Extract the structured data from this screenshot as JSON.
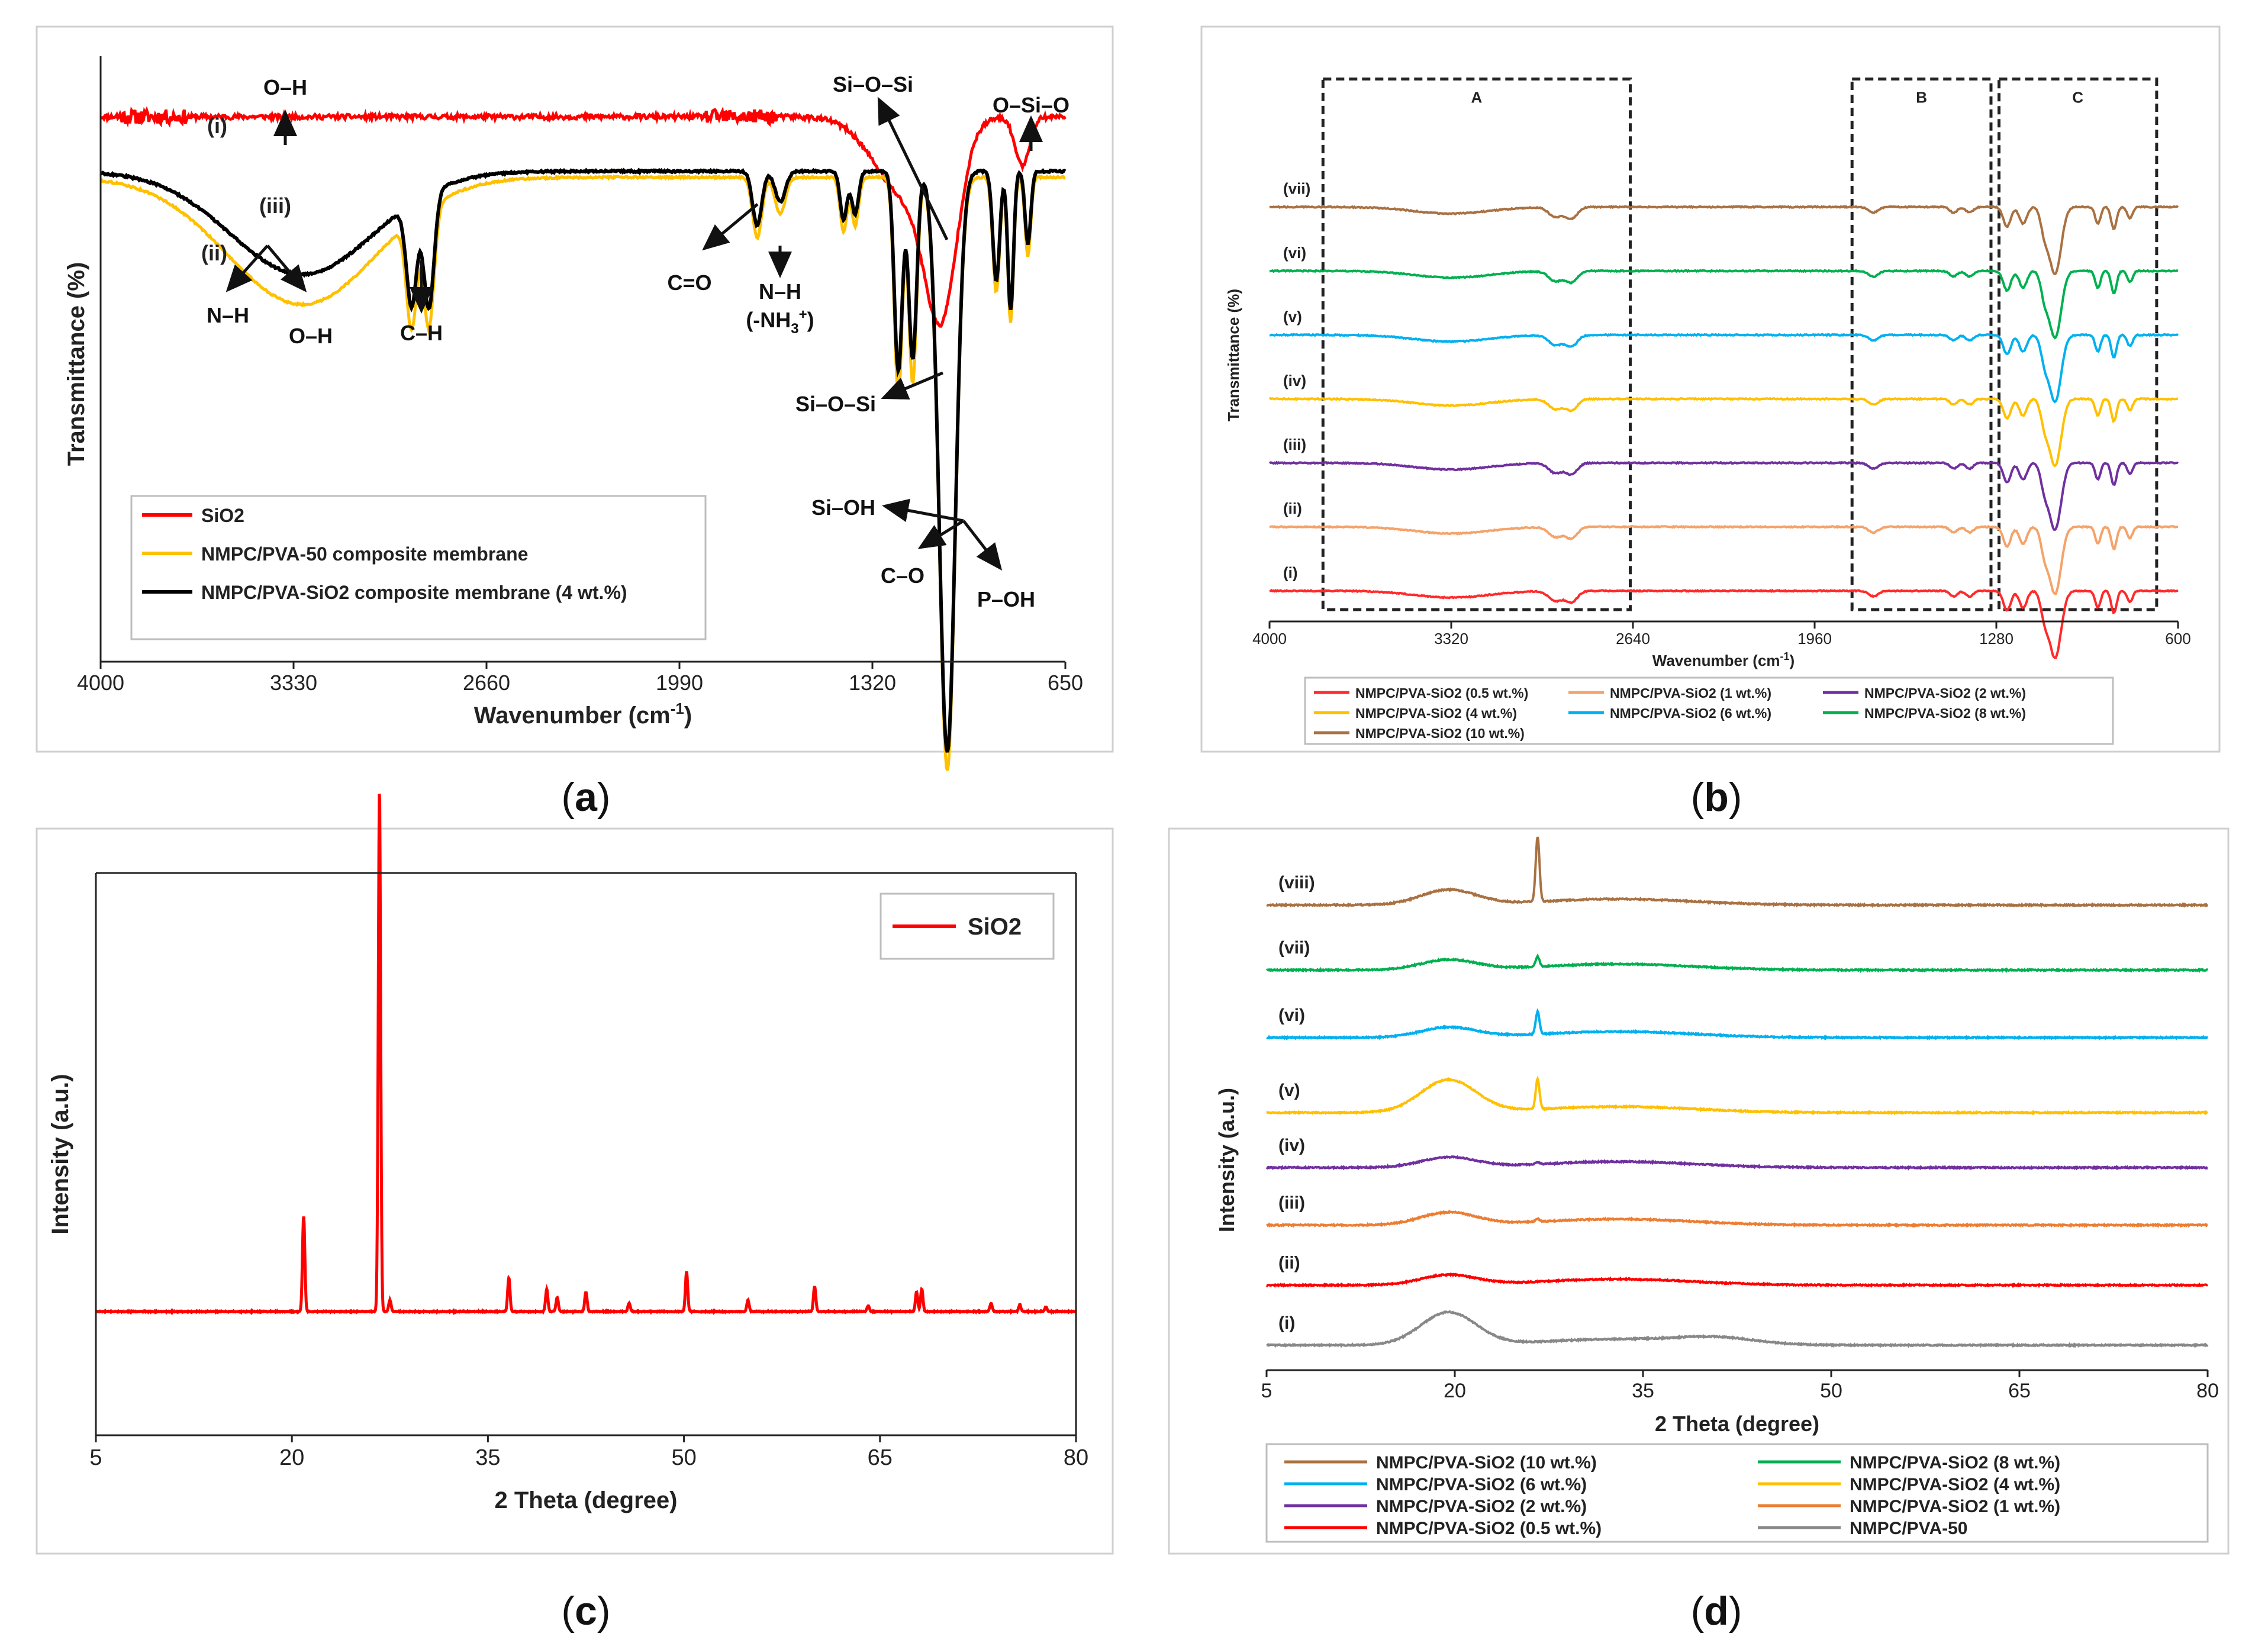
{
  "panels": {
    "a": {
      "caption": "a",
      "chart_data": {
        "type": "line",
        "xlabel": "Wavenumber (cm",
        "xlabel_sup": "-1",
        "xlabel_end": ")",
        "ylabel": "Transmittance (%)",
        "xlim": [
          4000,
          650
        ],
        "x_reversed": true,
        "xticks": [
          4000,
          3330,
          2660,
          1990,
          1320,
          650
        ],
        "series": [
          {
            "name": "SiO2",
            "label": "(i)",
            "color": "#ff0000",
            "offset": 0.9,
            "peaks": [
              [
                1200,
                0.13,
                110
              ],
              [
                1080,
                0.27,
                55
              ],
              [
                800,
                0.08,
                25
              ]
            ],
            "noise": 0.008
          },
          {
            "name": "NMPC/PVA-50 composite membrane",
            "label": "(ii)",
            "color": "#ffc000",
            "offset": 0.8,
            "peaks": [
              [
                3300,
                0.21,
                260
              ],
              [
                2920,
                0.18,
                18
              ],
              [
                2860,
                0.2,
                18
              ],
              [
                1720,
                0.1,
                16
              ],
              [
                1640,
                0.06,
                18
              ],
              [
                1420,
                0.09,
                12
              ],
              [
                1380,
                0.08,
                12
              ],
              [
                1230,
                0.36,
                14
              ],
              [
                1180,
                0.34,
                14
              ],
              [
                1060,
                0.98,
                28
              ],
              [
                890,
                0.19,
                12
              ],
              [
                840,
                0.24,
                10
              ],
              [
                780,
                0.13,
                10
              ]
            ],
            "noise": 0.003
          },
          {
            "name": "NMPC/PVA-SiO2 composite membrane (4 wt.%)",
            "label": "(iii)",
            "color": "#000000",
            "offset": 0.81,
            "peaks": [
              [
                3300,
                0.17,
                250
              ],
              [
                2920,
                0.17,
                18
              ],
              [
                2860,
                0.19,
                18
              ],
              [
                1720,
                0.09,
                16
              ],
              [
                1640,
                0.05,
                18
              ],
              [
                1420,
                0.08,
                12
              ],
              [
                1380,
                0.07,
                12
              ],
              [
                1230,
                0.33,
                14
              ],
              [
                1180,
                0.31,
                14
              ],
              [
                1060,
                0.96,
                28
              ],
              [
                890,
                0.18,
                12
              ],
              [
                840,
                0.23,
                10
              ],
              [
                780,
                0.12,
                10
              ]
            ],
            "noise": 0.003
          }
        ],
        "series_labels": [
          "(i)",
          "(ii)",
          "(iii)"
        ],
        "annotations": [
          "O–H",
          "N–H",
          "O–H",
          "C–H",
          "C=O",
          "N–H",
          "(-NH",
          "3",
          "+",
          ")",
          "Si–O–Si",
          "Si–O–Si",
          "O–Si–O",
          "Si–OH",
          "C–O",
          "P–OH"
        ],
        "legend": [
          "SiO2",
          "NMPC/PVA-50 composite membrane",
          "NMPC/PVA-SiO2 composite membrane (4 wt.%)"
        ],
        "legend_position": "bottom-left",
        "grid": false
      }
    },
    "b": {
      "caption": "b",
      "chart_data": {
        "type": "line",
        "xlabel": "Wavenumber (cm",
        "xlabel_sup": "-1",
        "xlabel_end": ")",
        "ylabel": "Transmittance (%)",
        "xlim": [
          4000,
          600
        ],
        "x_reversed": true,
        "xticks": [
          4000,
          3320,
          2640,
          1960,
          1280,
          600
        ],
        "series": [
          {
            "name": "NMPC/PVA-SiO2 (0.5 wt.%)",
            "label": "(i)",
            "color": "#ff2a2a",
            "offset": 0.055
          },
          {
            "name": "NMPC/PVA-SiO2 (1 wt.%)",
            "label": "(ii)",
            "color": "#f4a36b",
            "offset": 0.17
          },
          {
            "name": "NMPC/PVA-SiO2 (2 wt.%)",
            "label": "(iii)",
            "color": "#7030a0",
            "offset": 0.285
          },
          {
            "name": "NMPC/PVA-SiO2 (4 wt.%)",
            "label": "(iv)",
            "color": "#ffc000",
            "offset": 0.4
          },
          {
            "name": "NMPC/PVA-SiO2 (6 wt.%)",
            "label": "(v)",
            "color": "#00b0f0",
            "offset": 0.515
          },
          {
            "name": "NMPC/PVA-SiO2 (8 wt.%)",
            "label": "(vi)",
            "color": "#00b050",
            "offset": 0.63
          },
          {
            "name": "NMPC/PVA-SiO2 (10 wt.%)",
            "label": "(vii)",
            "color": "#a97142",
            "offset": 0.745
          }
        ],
        "peaks": [
          [
            3320,
            0.012,
            140
          ],
          [
            2930,
            0.018,
            25
          ],
          [
            2870,
            0.02,
            22
          ],
          [
            1740,
            0.01,
            18
          ],
          [
            1440,
            0.01,
            14
          ],
          [
            1380,
            0.01,
            14
          ],
          [
            1240,
            0.035,
            14
          ],
          [
            1180,
            0.03,
            14
          ],
          [
            1100,
            0.04,
            14
          ],
          [
            1060,
            0.12,
            22
          ],
          [
            900,
            0.03,
            10
          ],
          [
            840,
            0.04,
            10
          ],
          [
            780,
            0.02,
            10
          ]
        ],
        "regions": [
          {
            "label": "A",
            "x": [
              3800,
              2650
            ]
          },
          {
            "label": "B",
            "x": [
              1820,
              1300
            ]
          },
          {
            "label": "C",
            "x": [
              1270,
              680
            ]
          }
        ],
        "legend_position": "bottom",
        "grid": false
      }
    },
    "c": {
      "caption": "c",
      "chart_data": {
        "type": "line",
        "xlabel": "2 Theta (degree)",
        "ylabel": "Intensity (a.u.)",
        "xlim": [
          5,
          80
        ],
        "xticks": [
          5,
          20,
          35,
          50,
          65,
          80
        ],
        "series": [
          {
            "name": "SiO2",
            "color": "#ff0000",
            "baseline": 0.22,
            "peaks": [
              [
                20.9,
                0.17
              ],
              [
                26.7,
                0.93
              ],
              [
                27.5,
                0.02
              ],
              [
                36.6,
                0.06
              ],
              [
                39.5,
                0.04
              ],
              [
                40.3,
                0.025
              ],
              [
                42.5,
                0.035
              ],
              [
                45.8,
                0.015
              ],
              [
                50.2,
                0.07
              ],
              [
                54.9,
                0.02
              ],
              [
                60.0,
                0.045
              ],
              [
                64.1,
                0.01
              ],
              [
                67.8,
                0.035
              ],
              [
                68.2,
                0.04
              ],
              [
                73.5,
                0.015
              ],
              [
                75.7,
                0.012
              ],
              [
                77.7,
                0.008
              ]
            ]
          }
        ],
        "legend": [
          "SiO2"
        ],
        "legend_position": "top-right",
        "grid": false
      }
    },
    "d": {
      "caption": "d",
      "chart_data": {
        "type": "line",
        "xlabel": "2 Theta (degree)",
        "ylabel": "Intensity (a.u.)",
        "xlim": [
          5,
          80
        ],
        "xticks": [
          5,
          20,
          35,
          50,
          65,
          80
        ],
        "series": [
          {
            "name": "NMPC/PVA-50",
            "label": "(i)",
            "color": "#888888",
            "offset": 0.05,
            "hump": 0.065,
            "sharp": 0
          },
          {
            "name": "NMPC/PVA-SiO2 (0.5 wt.%)",
            "label": "(ii)",
            "color": "#ff0000",
            "offset": 0.17,
            "hump": 0.02,
            "sharp": 0
          },
          {
            "name": "NMPC/PVA-SiO2 (1 wt.%)",
            "label": "(iii)",
            "color": "#ed7d31",
            "offset": 0.29,
            "hump": 0.025,
            "sharp": 0.006
          },
          {
            "name": "NMPC/PVA-SiO2 (2 wt.%)",
            "label": "(iv)",
            "color": "#7030a0",
            "offset": 0.405,
            "hump": 0.02,
            "sharp": 0.004
          },
          {
            "name": "NMPC/PVA-SiO2 (4 wt.%)",
            "label": "(v)",
            "color": "#ffc000",
            "offset": 0.515,
            "hump": 0.065,
            "sharp": 0.06
          },
          {
            "name": "NMPC/PVA-SiO2 (6 wt.%)",
            "label": "(vi)",
            "color": "#00b0f0",
            "offset": 0.665,
            "hump": 0.02,
            "sharp": 0.045
          },
          {
            "name": "NMPC/PVA-SiO2 (8 wt.%)",
            "label": "(vii)",
            "color": "#00b050",
            "offset": 0.8,
            "hump": 0.02,
            "sharp": 0.02
          },
          {
            "name": "NMPC/PVA-SiO2 (10 wt.%)",
            "label": "(viii)",
            "color": "#a97142",
            "offset": 0.93,
            "hump": 0.03,
            "sharp": 0.13
          }
        ],
        "legend_order": [
          "NMPC/PVA-SiO2 (10 wt.%)",
          "NMPC/PVA-SiO2 (8 wt.%)",
          "NMPC/PVA-SiO2 (6 wt.%)",
          "NMPC/PVA-SiO2 (4 wt.%)",
          "NMPC/PVA-SiO2 (2 wt.%)",
          "NMPC/PVA-SiO2 (1 wt.%)",
          "NMPC/PVA-SiO2 (0.5 wt.%)",
          "NMPC/PVA-50"
        ],
        "legend_position": "bottom",
        "grid": false
      }
    }
  }
}
